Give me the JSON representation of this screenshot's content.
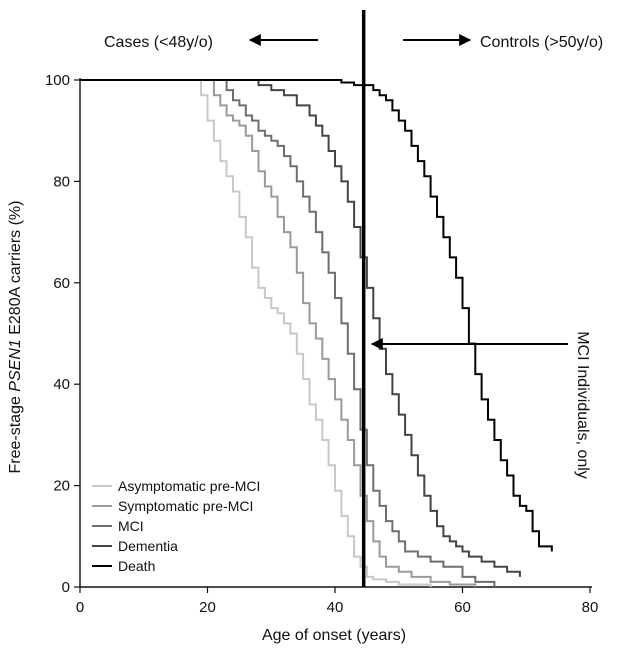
{
  "chart_data": {
    "type": "line",
    "xlabel": "Age of onset (years)",
    "ylabel_parts": [
      "Free-stage ",
      "PSEN1",
      " E280A carriers (%)"
    ],
    "xlim": [
      0,
      80
    ],
    "ylim": [
      0,
      100
    ],
    "xticks": [
      0,
      20,
      40,
      60,
      80
    ],
    "yticks": [
      0,
      20,
      40,
      60,
      80,
      100
    ],
    "grid": false,
    "legend_position": "bottom-left",
    "annotations": {
      "cases": "Cases (<48y/o)",
      "controls": "Controls (>50y/o)",
      "mci_only": "MCI Individuals, only",
      "divider_x": 44.5
    },
    "series": [
      {
        "name": "Asymptomatic pre-MCI",
        "color": "#c8c8c8",
        "points": [
          [
            0,
            100
          ],
          [
            18,
            100
          ],
          [
            19,
            97
          ],
          [
            20,
            92
          ],
          [
            21,
            88
          ],
          [
            22,
            84
          ],
          [
            23,
            81
          ],
          [
            24,
            78
          ],
          [
            25,
            73
          ],
          [
            26,
            69
          ],
          [
            27,
            63
          ],
          [
            28,
            59
          ],
          [
            29,
            57
          ],
          [
            30,
            55
          ],
          [
            31,
            54
          ],
          [
            32,
            52
          ],
          [
            33,
            50
          ],
          [
            34,
            46
          ],
          [
            35,
            41
          ],
          [
            36,
            36
          ],
          [
            37,
            33
          ],
          [
            38,
            29
          ],
          [
            39,
            24
          ],
          [
            40,
            19
          ],
          [
            41,
            14
          ],
          [
            42,
            10
          ],
          [
            43,
            6
          ],
          [
            44,
            4
          ],
          [
            45,
            2
          ],
          [
            46,
            1.5
          ],
          [
            48,
            1
          ],
          [
            50,
            0.5
          ],
          [
            55,
            0
          ]
        ]
      },
      {
        "name": "Symptomatic pre-MCI",
        "color": "#9a9a9a",
        "points": [
          [
            0,
            100
          ],
          [
            20,
            100
          ],
          [
            21,
            97
          ],
          [
            22,
            95
          ],
          [
            23,
            93
          ],
          [
            24,
            92
          ],
          [
            25,
            91
          ],
          [
            26,
            89
          ],
          [
            27,
            86
          ],
          [
            28,
            82
          ],
          [
            29,
            79
          ],
          [
            30,
            77
          ],
          [
            31,
            73
          ],
          [
            32,
            70
          ],
          [
            33,
            67
          ],
          [
            34,
            62
          ],
          [
            35,
            56
          ],
          [
            36,
            52
          ],
          [
            37,
            49
          ],
          [
            38,
            45
          ],
          [
            39,
            41
          ],
          [
            40,
            37
          ],
          [
            41,
            33
          ],
          [
            42,
            29
          ],
          [
            43,
            24
          ],
          [
            44,
            18
          ],
          [
            45,
            13
          ],
          [
            46,
            9
          ],
          [
            47,
            6
          ],
          [
            48,
            4
          ],
          [
            50,
            3
          ],
          [
            52,
            2
          ],
          [
            55,
            1
          ],
          [
            58,
            0.5
          ],
          [
            62,
            0
          ]
        ]
      },
      {
        "name": "MCI",
        "color": "#6e6e6e",
        "points": [
          [
            0,
            100
          ],
          [
            22,
            100
          ],
          [
            23,
            98
          ],
          [
            24,
            96
          ],
          [
            25,
            95
          ],
          [
            26,
            93
          ],
          [
            27,
            92
          ],
          [
            28,
            90
          ],
          [
            29,
            89
          ],
          [
            30,
            88
          ],
          [
            31,
            87
          ],
          [
            32,
            85
          ],
          [
            33,
            83
          ],
          [
            34,
            80
          ],
          [
            35,
            77
          ],
          [
            36,
            74
          ],
          [
            37,
            70
          ],
          [
            38,
            66
          ],
          [
            39,
            62
          ],
          [
            40,
            57
          ],
          [
            41,
            52
          ],
          [
            42,
            46
          ],
          [
            43,
            39
          ],
          [
            44,
            31
          ],
          [
            45,
            24
          ],
          [
            46,
            19
          ],
          [
            47,
            16
          ],
          [
            48,
            13
          ],
          [
            49,
            11
          ],
          [
            50,
            9
          ],
          [
            51,
            7
          ],
          [
            53,
            6
          ],
          [
            55,
            5
          ],
          [
            57,
            4
          ],
          [
            60,
            2
          ],
          [
            62,
            1
          ],
          [
            65,
            0
          ]
        ]
      },
      {
        "name": "Dementia",
        "color": "#444444",
        "points": [
          [
            0,
            100
          ],
          [
            27,
            100
          ],
          [
            28,
            99
          ],
          [
            30,
            98
          ],
          [
            32,
            97
          ],
          [
            34,
            95
          ],
          [
            36,
            93
          ],
          [
            37,
            91
          ],
          [
            38,
            89
          ],
          [
            39,
            86
          ],
          [
            40,
            83
          ],
          [
            41,
            80
          ],
          [
            42,
            76
          ],
          [
            43,
            71
          ],
          [
            44,
            65
          ],
          [
            45,
            59
          ],
          [
            46,
            53
          ],
          [
            47,
            47
          ],
          [
            48,
            42
          ],
          [
            49,
            38
          ],
          [
            50,
            34
          ],
          [
            51,
            30
          ],
          [
            52,
            26
          ],
          [
            53,
            22
          ],
          [
            54,
            18
          ],
          [
            55,
            15
          ],
          [
            56,
            12
          ],
          [
            57,
            10
          ],
          [
            58,
            9
          ],
          [
            59,
            8
          ],
          [
            60,
            7
          ],
          [
            61,
            6
          ],
          [
            63,
            5
          ],
          [
            65,
            4
          ],
          [
            67,
            3
          ],
          [
            69,
            2
          ]
        ]
      },
      {
        "name": "Death",
        "color": "#000000",
        "points": [
          [
            0,
            100
          ],
          [
            40,
            100
          ],
          [
            41,
            99.5
          ],
          [
            43,
            99
          ],
          [
            45,
            99
          ],
          [
            46,
            98
          ],
          [
            47,
            97
          ],
          [
            48,
            96
          ],
          [
            49,
            94
          ],
          [
            50,
            92
          ],
          [
            51,
            90
          ],
          [
            52,
            87
          ],
          [
            53,
            84
          ],
          [
            54,
            81
          ],
          [
            55,
            77
          ],
          [
            56,
            73
          ],
          [
            57,
            69
          ],
          [
            58,
            65
          ],
          [
            59,
            61
          ],
          [
            60,
            55
          ],
          [
            61,
            48
          ],
          [
            62,
            42
          ],
          [
            63,
            37
          ],
          [
            64,
            33
          ],
          [
            65,
            29
          ],
          [
            66,
            25
          ],
          [
            67,
            22
          ],
          [
            68,
            18
          ],
          [
            69,
            16
          ],
          [
            70,
            15
          ],
          [
            71,
            11
          ],
          [
            72,
            8
          ],
          [
            74,
            7
          ]
        ]
      }
    ]
  }
}
